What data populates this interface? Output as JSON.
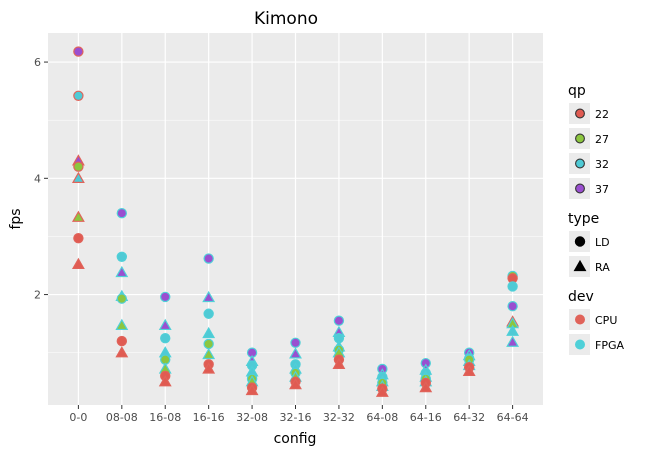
{
  "chart_data": {
    "type": "scatter",
    "title": "Kimono",
    "xlabel": "config",
    "ylabel": "fps",
    "categories": [
      "0-0",
      "08-08",
      "16-08",
      "16-16",
      "32-08",
      "32-16",
      "32-32",
      "64-08",
      "64-16",
      "64-32",
      "64-64"
    ],
    "ylim": [
      0.1,
      6.5
    ],
    "yticks": [
      2,
      4,
      6
    ],
    "grid": true,
    "colors": {
      "panel": "#ebebeb",
      "grid": "#ffffff",
      "qp_22": "#e05b52",
      "qp_27": "#8cc63f",
      "qp_32": "#4fcad5",
      "qp_37": "#9a4fd0",
      "dev_CPU": "#e0635a",
      "dev_FPGA": "#4fd0d8"
    },
    "legend": {
      "placement": "right",
      "qp": {
        "title": "qp",
        "items": [
          "22",
          "27",
          "32",
          "37"
        ]
      },
      "type": {
        "title": "type",
        "items": [
          "LD",
          "RA"
        ]
      },
      "dev": {
        "title": "dev",
        "items": [
          "CPU",
          "FPGA"
        ]
      }
    },
    "points": [
      {
        "x": "0-0",
        "y": 6.18,
        "qp": "37",
        "type": "LD",
        "dev": "CPU"
      },
      {
        "x": "0-0",
        "y": 5.42,
        "qp": "32",
        "type": "LD",
        "dev": "CPU"
      },
      {
        "x": "0-0",
        "y": 4.3,
        "qp": "37",
        "type": "RA",
        "dev": "CPU"
      },
      {
        "x": "0-0",
        "y": 4.2,
        "qp": "27",
        "type": "LD",
        "dev": "CPU"
      },
      {
        "x": "0-0",
        "y": 4.0,
        "qp": "32",
        "type": "RA",
        "dev": "CPU"
      },
      {
        "x": "0-0",
        "y": 3.33,
        "qp": "27",
        "type": "RA",
        "dev": "CPU"
      },
      {
        "x": "0-0",
        "y": 2.97,
        "qp": "22",
        "type": "LD",
        "dev": "CPU"
      },
      {
        "x": "0-0",
        "y": 2.52,
        "qp": "22",
        "type": "RA",
        "dev": "CPU"
      },
      {
        "x": "08-08",
        "y": 3.4,
        "qp": "37",
        "type": "LD",
        "dev": "FPGA"
      },
      {
        "x": "08-08",
        "y": 2.65,
        "qp": "32",
        "type": "LD",
        "dev": "FPGA"
      },
      {
        "x": "08-08",
        "y": 2.38,
        "qp": "37",
        "type": "RA",
        "dev": "FPGA"
      },
      {
        "x": "08-08",
        "y": 1.97,
        "qp": "32",
        "type": "RA",
        "dev": "FPGA"
      },
      {
        "x": "08-08",
        "y": 1.93,
        "qp": "27",
        "type": "LD",
        "dev": "FPGA"
      },
      {
        "x": "08-08",
        "y": 1.47,
        "qp": "27",
        "type": "RA",
        "dev": "FPGA"
      },
      {
        "x": "08-08",
        "y": 1.2,
        "qp": "22",
        "type": "LD",
        "dev": "CPU"
      },
      {
        "x": "08-08",
        "y": 1.0,
        "qp": "22",
        "type": "RA",
        "dev": "CPU"
      },
      {
        "x": "16-08",
        "y": 1.96,
        "qp": "37",
        "type": "LD",
        "dev": "FPGA"
      },
      {
        "x": "16-08",
        "y": 1.47,
        "qp": "37",
        "type": "RA",
        "dev": "FPGA"
      },
      {
        "x": "16-08",
        "y": 1.25,
        "qp": "32",
        "type": "LD",
        "dev": "FPGA"
      },
      {
        "x": "16-08",
        "y": 1.0,
        "qp": "32",
        "type": "RA",
        "dev": "FPGA"
      },
      {
        "x": "16-08",
        "y": 0.88,
        "qp": "27",
        "type": "LD",
        "dev": "FPGA"
      },
      {
        "x": "16-08",
        "y": 0.72,
        "qp": "27",
        "type": "RA",
        "dev": "FPGA"
      },
      {
        "x": "16-08",
        "y": 0.6,
        "qp": "22",
        "type": "LD",
        "dev": "CPU"
      },
      {
        "x": "16-08",
        "y": 0.5,
        "qp": "22",
        "type": "RA",
        "dev": "CPU"
      },
      {
        "x": "16-16",
        "y": 2.62,
        "qp": "37",
        "type": "LD",
        "dev": "FPGA"
      },
      {
        "x": "16-16",
        "y": 1.95,
        "qp": "37",
        "type": "RA",
        "dev": "FPGA"
      },
      {
        "x": "16-16",
        "y": 1.67,
        "qp": "32",
        "type": "LD",
        "dev": "FPGA"
      },
      {
        "x": "16-16",
        "y": 1.33,
        "qp": "32",
        "type": "RA",
        "dev": "FPGA"
      },
      {
        "x": "16-16",
        "y": 1.15,
        "qp": "27",
        "type": "LD",
        "dev": "FPGA"
      },
      {
        "x": "16-16",
        "y": 0.97,
        "qp": "27",
        "type": "RA",
        "dev": "FPGA"
      },
      {
        "x": "16-16",
        "y": 0.8,
        "qp": "22",
        "type": "LD",
        "dev": "CPU"
      },
      {
        "x": "16-16",
        "y": 0.72,
        "qp": "22",
        "type": "RA",
        "dev": "CPU"
      },
      {
        "x": "32-08",
        "y": 1.0,
        "qp": "37",
        "type": "LD",
        "dev": "FPGA"
      },
      {
        "x": "32-08",
        "y": 0.85,
        "qp": "37",
        "type": "RA",
        "dev": "FPGA"
      },
      {
        "x": "32-08",
        "y": 0.78,
        "qp": "32",
        "type": "LD",
        "dev": "FPGA"
      },
      {
        "x": "32-08",
        "y": 0.67,
        "qp": "32",
        "type": "RA",
        "dev": "FPGA"
      },
      {
        "x": "32-08",
        "y": 0.55,
        "qp": "27",
        "type": "LD",
        "dev": "FPGA"
      },
      {
        "x": "32-08",
        "y": 0.5,
        "qp": "27",
        "type": "RA",
        "dev": "FPGA"
      },
      {
        "x": "32-08",
        "y": 0.4,
        "qp": "22",
        "type": "LD",
        "dev": "CPU"
      },
      {
        "x": "32-08",
        "y": 0.35,
        "qp": "22",
        "type": "RA",
        "dev": "CPU"
      },
      {
        "x": "32-16",
        "y": 1.17,
        "qp": "37",
        "type": "LD",
        "dev": "FPGA"
      },
      {
        "x": "32-16",
        "y": 0.98,
        "qp": "37",
        "type": "RA",
        "dev": "FPGA"
      },
      {
        "x": "32-16",
        "y": 0.8,
        "qp": "32",
        "type": "LD",
        "dev": "FPGA"
      },
      {
        "x": "32-16",
        "y": 0.72,
        "qp": "32",
        "type": "RA",
        "dev": "FPGA"
      },
      {
        "x": "32-16",
        "y": 0.65,
        "qp": "27",
        "type": "LD",
        "dev": "FPGA"
      },
      {
        "x": "32-16",
        "y": 0.58,
        "qp": "27",
        "type": "RA",
        "dev": "FPGA"
      },
      {
        "x": "32-16",
        "y": 0.5,
        "qp": "22",
        "type": "LD",
        "dev": "CPU"
      },
      {
        "x": "32-16",
        "y": 0.45,
        "qp": "22",
        "type": "RA",
        "dev": "CPU"
      },
      {
        "x": "32-32",
        "y": 1.55,
        "qp": "37",
        "type": "LD",
        "dev": "FPGA"
      },
      {
        "x": "32-32",
        "y": 1.35,
        "qp": "37",
        "type": "RA",
        "dev": "FPGA"
      },
      {
        "x": "32-32",
        "y": 1.25,
        "qp": "32",
        "type": "LD",
        "dev": "FPGA"
      },
      {
        "x": "32-32",
        "y": 1.1,
        "qp": "32",
        "type": "RA",
        "dev": "FPGA"
      },
      {
        "x": "32-32",
        "y": 1.05,
        "qp": "27",
        "type": "LD",
        "dev": "FPGA"
      },
      {
        "x": "32-32",
        "y": 1.0,
        "qp": "27",
        "type": "RA",
        "dev": "FPGA"
      },
      {
        "x": "32-32",
        "y": 0.88,
        "qp": "22",
        "type": "LD",
        "dev": "CPU"
      },
      {
        "x": "32-32",
        "y": 0.8,
        "qp": "22",
        "type": "RA",
        "dev": "CPU"
      },
      {
        "x": "64-08",
        "y": 0.72,
        "qp": "37",
        "type": "LD",
        "dev": "FPGA"
      },
      {
        "x": "64-08",
        "y": 0.62,
        "qp": "37",
        "type": "RA",
        "dev": "FPGA"
      },
      {
        "x": "64-08",
        "y": 0.58,
        "qp": "32",
        "type": "LD",
        "dev": "FPGA"
      },
      {
        "x": "64-08",
        "y": 0.5,
        "qp": "32",
        "type": "RA",
        "dev": "FPGA"
      },
      {
        "x": "64-08",
        "y": 0.48,
        "qp": "27",
        "type": "LD",
        "dev": "FPGA"
      },
      {
        "x": "64-08",
        "y": 0.42,
        "qp": "27",
        "type": "RA",
        "dev": "FPGA"
      },
      {
        "x": "64-08",
        "y": 0.38,
        "qp": "22",
        "type": "LD",
        "dev": "CPU"
      },
      {
        "x": "64-08",
        "y": 0.32,
        "qp": "22",
        "type": "RA",
        "dev": "CPU"
      },
      {
        "x": "64-16",
        "y": 0.82,
        "qp": "37",
        "type": "LD",
        "dev": "FPGA"
      },
      {
        "x": "64-16",
        "y": 0.7,
        "qp": "37",
        "type": "RA",
        "dev": "FPGA"
      },
      {
        "x": "64-16",
        "y": 0.65,
        "qp": "32",
        "type": "LD",
        "dev": "FPGA"
      },
      {
        "x": "64-16",
        "y": 0.58,
        "qp": "32",
        "type": "RA",
        "dev": "FPGA"
      },
      {
        "x": "64-16",
        "y": 0.55,
        "qp": "27",
        "type": "LD",
        "dev": "FPGA"
      },
      {
        "x": "64-16",
        "y": 0.5,
        "qp": "27",
        "type": "RA",
        "dev": "FPGA"
      },
      {
        "x": "64-16",
        "y": 0.48,
        "qp": "22",
        "type": "LD",
        "dev": "CPU"
      },
      {
        "x": "64-16",
        "y": 0.4,
        "qp": "22",
        "type": "RA",
        "dev": "CPU"
      },
      {
        "x": "64-32",
        "y": 1.0,
        "qp": "37",
        "type": "LD",
        "dev": "FPGA"
      },
      {
        "x": "64-32",
        "y": 0.95,
        "qp": "37",
        "type": "RA",
        "dev": "FPGA"
      },
      {
        "x": "64-32",
        "y": 0.9,
        "qp": "32",
        "type": "LD",
        "dev": "FPGA"
      },
      {
        "x": "64-32",
        "y": 0.85,
        "qp": "32",
        "type": "RA",
        "dev": "FPGA"
      },
      {
        "x": "64-32",
        "y": 0.88,
        "qp": "27",
        "type": "LD",
        "dev": "FPGA"
      },
      {
        "x": "64-32",
        "y": 0.78,
        "qp": "27",
        "type": "RA",
        "dev": "FPGA"
      },
      {
        "x": "64-32",
        "y": 0.75,
        "qp": "22",
        "type": "LD",
        "dev": "CPU"
      },
      {
        "x": "64-32",
        "y": 0.68,
        "qp": "22",
        "type": "RA",
        "dev": "CPU"
      },
      {
        "x": "64-64",
        "y": 2.32,
        "qp": "27",
        "type": "LD",
        "dev": "FPGA"
      },
      {
        "x": "64-64",
        "y": 2.28,
        "qp": "22",
        "type": "LD",
        "dev": "CPU"
      },
      {
        "x": "64-64",
        "y": 2.14,
        "qp": "32",
        "type": "LD",
        "dev": "FPGA"
      },
      {
        "x": "64-64",
        "y": 1.8,
        "qp": "37",
        "type": "LD",
        "dev": "FPGA"
      },
      {
        "x": "64-64",
        "y": 1.53,
        "qp": "22",
        "type": "RA",
        "dev": "CPU"
      },
      {
        "x": "64-64",
        "y": 1.5,
        "qp": "27",
        "type": "RA",
        "dev": "FPGA"
      },
      {
        "x": "64-64",
        "y": 1.37,
        "qp": "32",
        "type": "RA",
        "dev": "FPGA"
      },
      {
        "x": "64-64",
        "y": 1.18,
        "qp": "37",
        "type": "RA",
        "dev": "FPGA"
      }
    ]
  }
}
